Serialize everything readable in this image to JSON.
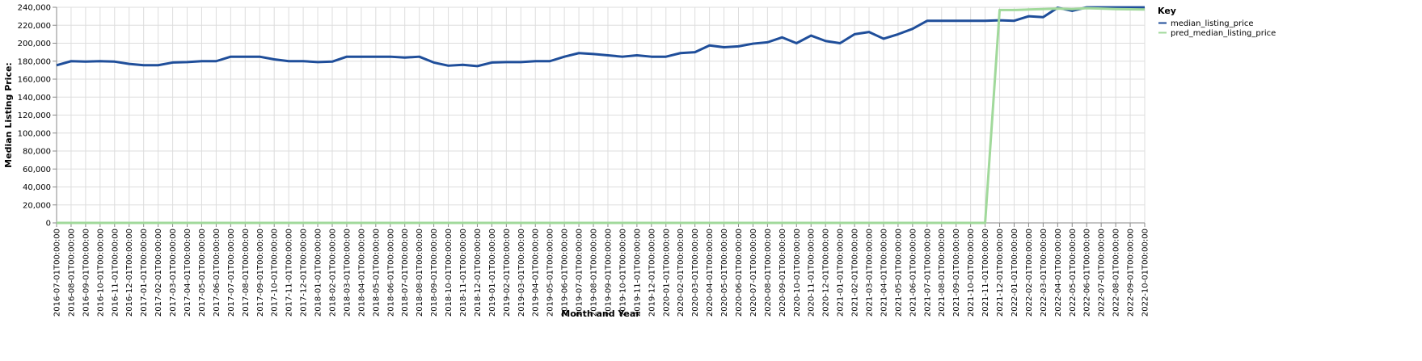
{
  "chart_data": {
    "type": "line",
    "xlabel": "Month and Year",
    "ylabel": "Median Listing Price:",
    "ylim": [
      0,
      240000
    ],
    "yticks": [
      0,
      20000,
      40000,
      60000,
      80000,
      100000,
      120000,
      140000,
      160000,
      180000,
      200000,
      220000,
      240000
    ],
    "grid": true,
    "legend": {
      "title": "Key",
      "position": "right"
    },
    "categories": [
      "2016-07-01T00:00:00",
      "2016-08-01T00:00:00",
      "2016-09-01T00:00:00",
      "2016-10-01T00:00:00",
      "2016-11-01T00:00:00",
      "2016-12-01T00:00:00",
      "2017-01-01T00:00:00",
      "2017-02-01T00:00:00",
      "2017-03-01T00:00:00",
      "2017-04-01T00:00:00",
      "2017-05-01T00:00:00",
      "2017-06-01T00:00:00",
      "2017-07-01T00:00:00",
      "2017-08-01T00:00:00",
      "2017-09-01T00:00:00",
      "2017-10-01T00:00:00",
      "2017-11-01T00:00:00",
      "2017-12-01T00:00:00",
      "2018-01-01T00:00:00",
      "2018-02-01T00:00:00",
      "2018-03-01T00:00:00",
      "2018-04-01T00:00:00",
      "2018-05-01T00:00:00",
      "2018-06-01T00:00:00",
      "2018-07-01T00:00:00",
      "2018-08-01T00:00:00",
      "2018-09-01T00:00:00",
      "2018-10-01T00:00:00",
      "2018-11-01T00:00:00",
      "2018-12-01T00:00:00",
      "2019-01-01T00:00:00",
      "2019-02-01T00:00:00",
      "2019-03-01T00:00:00",
      "2019-04-01T00:00:00",
      "2019-05-01T00:00:00",
      "2019-06-01T00:00:00",
      "2019-07-01T00:00:00",
      "2019-08-01T00:00:00",
      "2019-09-01T00:00:00",
      "2019-10-01T00:00:00",
      "2019-11-01T00:00:00",
      "2019-12-01T00:00:00",
      "2020-01-01T00:00:00",
      "2020-02-01T00:00:00",
      "2020-03-01T00:00:00",
      "2020-04-01T00:00:00",
      "2020-05-01T00:00:00",
      "2020-06-01T00:00:00",
      "2020-07-01T00:00:00",
      "2020-08-01T00:00:00",
      "2020-09-01T00:00:00",
      "2020-10-01T00:00:00",
      "2020-11-01T00:00:00",
      "2020-12-01T00:00:00",
      "2021-01-01T00:00:00",
      "2021-02-01T00:00:00",
      "2021-03-01T00:00:00",
      "2021-04-01T00:00:00",
      "2021-05-01T00:00:00",
      "2021-06-01T00:00:00",
      "2021-07-01T00:00:00",
      "2021-08-01T00:00:00",
      "2021-09-01T00:00:00",
      "2021-10-01T00:00:00",
      "2021-11-01T00:00:00",
      "2021-12-01T00:00:00",
      "2022-01-01T00:00:00",
      "2022-02-01T00:00:00",
      "2022-03-01T00:00:00",
      "2022-04-01T00:00:00",
      "2022-05-01T00:00:00",
      "2022-06-01T00:00:00",
      "2022-07-01T00:00:00",
      "2022-08-01T00:00:00",
      "2022-09-01T00:00:00",
      "2022-10-01T00:00:00"
    ],
    "series": [
      {
        "name": "median_listing_price",
        "color": "#1f4e9a",
        "values": [
          175500,
          180000,
          179500,
          180000,
          179500,
          177000,
          175500,
          175500,
          178500,
          179000,
          180000,
          180000,
          185000,
          185000,
          185000,
          182000,
          180000,
          180000,
          179000,
          179500,
          185000,
          185000,
          185000,
          185000,
          184000,
          185000,
          178500,
          175000,
          176000,
          174500,
          178500,
          179000,
          179000,
          180000,
          180000,
          185000,
          189000,
          188000,
          186500,
          185000,
          186500,
          185000,
          185000,
          189000,
          190000,
          197500,
          195500,
          196500,
          199500,
          201000,
          206500,
          200000,
          208500,
          202500,
          200000,
          210000,
          212500,
          205000,
          210000,
          216000,
          224900,
          224900,
          224900,
          224900,
          224900,
          225500,
          225000,
          230000,
          229000,
          239500,
          236000,
          239900,
          239900,
          239900,
          239900,
          239900
        ]
      },
      {
        "name": "pred_median_listing_price",
        "color": "#a1d99b",
        "values": [
          0,
          0,
          0,
          0,
          0,
          0,
          0,
          0,
          0,
          0,
          0,
          0,
          0,
          0,
          0,
          0,
          0,
          0,
          0,
          0,
          0,
          0,
          0,
          0,
          0,
          0,
          0,
          0,
          0,
          0,
          0,
          0,
          0,
          0,
          0,
          0,
          0,
          0,
          0,
          0,
          0,
          0,
          0,
          0,
          0,
          0,
          0,
          0,
          0,
          0,
          0,
          0,
          0,
          0,
          0,
          0,
          0,
          0,
          0,
          0,
          0,
          0,
          0,
          0,
          0,
          237000,
          237000,
          237500,
          238000,
          238500,
          238000,
          239000,
          238500,
          238000,
          237800,
          237500
        ]
      }
    ]
  }
}
